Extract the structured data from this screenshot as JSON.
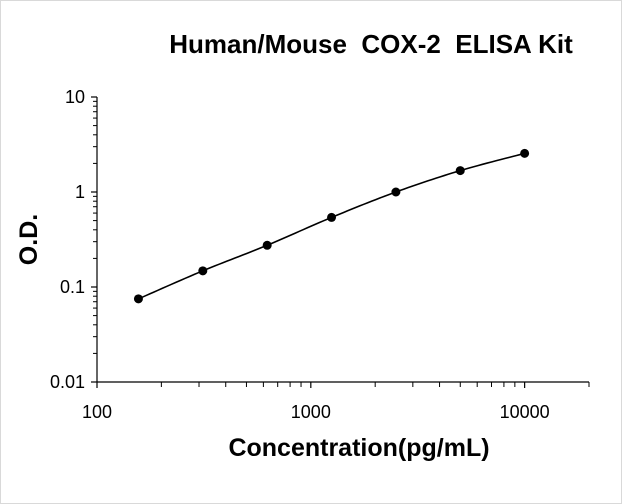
{
  "chart_data": {
    "type": "scatter",
    "title": "Human/Mouse  COX-2  ELISA Kit",
    "xlabel": "Concentration(pg/mL)",
    "ylabel": "O.D.",
    "xscale": "log",
    "yscale": "log",
    "xlim": [
      100,
      20000
    ],
    "ylim": [
      0.01,
      10
    ],
    "xticks": [
      "100",
      "1000",
      "10000"
    ],
    "yticks": [
      "0.01",
      "0.1",
      "1",
      "10"
    ],
    "grid": false,
    "legend": "none",
    "series": [
      {
        "x": [
          156.25,
          312.5,
          625,
          1250,
          2500,
          5000,
          10000
        ],
        "y": [
          0.075,
          0.148,
          0.275,
          0.54,
          1.0,
          1.68,
          2.55
        ],
        "marker": "circle",
        "fitted_line": true
      }
    ],
    "colors": {
      "marker": "#000000",
      "line": "#000000",
      "axis": "#000000"
    }
  }
}
